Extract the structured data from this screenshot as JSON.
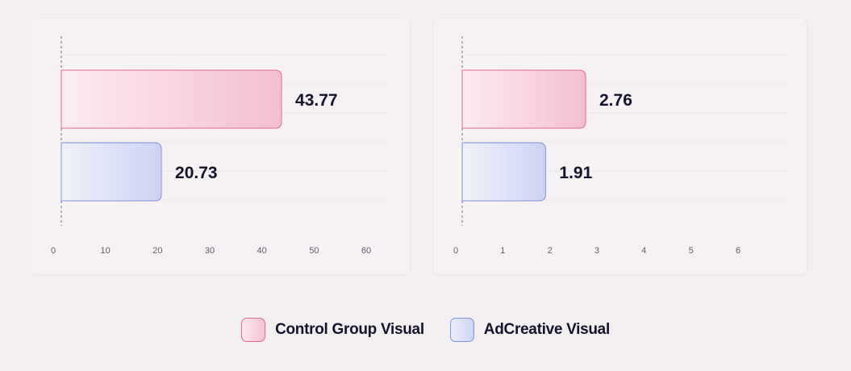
{
  "chart_data": [
    {
      "type": "bar",
      "orientation": "horizontal",
      "categories": [
        "Control Group Visual",
        "AdCreative Visual"
      ],
      "series": [
        {
          "values": [
            43.77,
            20.73
          ]
        }
      ],
      "value_labels": [
        "43.77",
        "20.73"
      ],
      "xlim": [
        0,
        60
      ],
      "x_ticks": [
        "0",
        "10",
        "20",
        "30",
        "40",
        "50",
        "60"
      ],
      "grid": true
    },
    {
      "type": "bar",
      "orientation": "horizontal",
      "categories": [
        "Control Group Visual",
        "AdCreative Visual"
      ],
      "series": [
        {
          "values": [
            2.76,
            1.91
          ]
        }
      ],
      "value_labels": [
        "2.76",
        "1.91"
      ],
      "xlim": [
        0,
        6
      ],
      "x_ticks": [
        "0",
        "1",
        "2",
        "3",
        "4",
        "5",
        "6"
      ],
      "grid": true
    }
  ],
  "colors": {
    "control_fill_start": "#fbecf1",
    "control_fill_end": "#f4bed1",
    "control_stroke": "#e06a91",
    "adcreative_fill_start": "#f0f1f8",
    "adcreative_fill_end": "#cbd3f2",
    "adcreative_stroke": "#7e93dd"
  },
  "legend": {
    "items": [
      {
        "label": "Control Group Visual",
        "icon": "pink-rounded-square"
      },
      {
        "label": "AdCreative Visual",
        "icon": "blue-rounded-square"
      }
    ]
  }
}
